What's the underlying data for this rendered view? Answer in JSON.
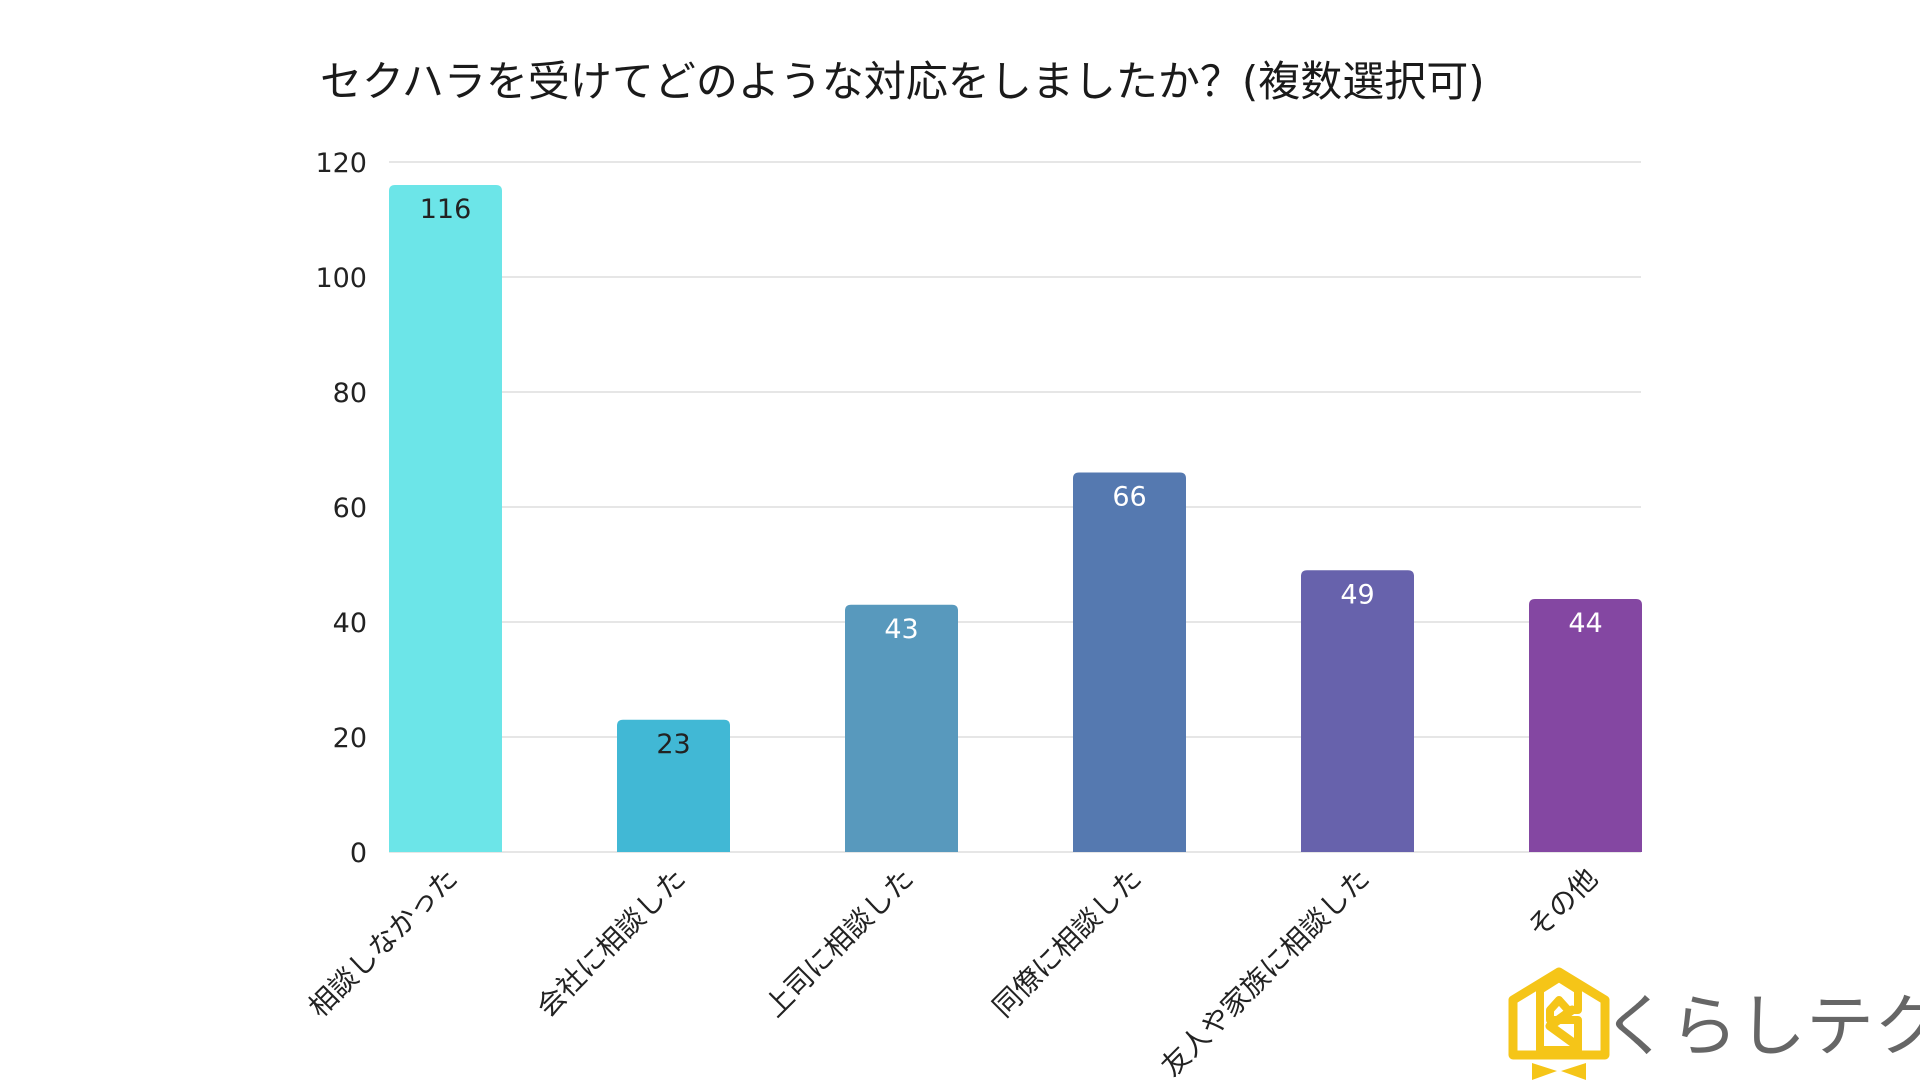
{
  "chart_data": {
    "type": "bar",
    "title": "セクハラを受けてどのような対応をしましたか？(複数選択可)",
    "xlabel": "",
    "ylabel": "",
    "ylim": [
      0,
      120
    ],
    "yticks": [
      0,
      20,
      40,
      60,
      80,
      100,
      120
    ],
    "grid": true,
    "categories": [
      "相談しなかった",
      "会社に相談した",
      "上司に相談した",
      "同僚に相談した",
      "友人や家族に相談した",
      "その他"
    ],
    "values": [
      116,
      23,
      43,
      66,
      49,
      44
    ],
    "colors": [
      "#6ce5e8",
      "#41b8d5",
      "#5899bd",
      "#5579b0",
      "#6762ac",
      "#8447a2"
    ],
    "value_label_colors": [
      "#222222",
      "#222222",
      "#ffffff",
      "#ffffff",
      "#ffffff",
      "#ffffff"
    ]
  },
  "branding": {
    "logo_text": "くらしテク",
    "logo_color": "#f5c518",
    "logo_icon": "house-k-icon"
  }
}
